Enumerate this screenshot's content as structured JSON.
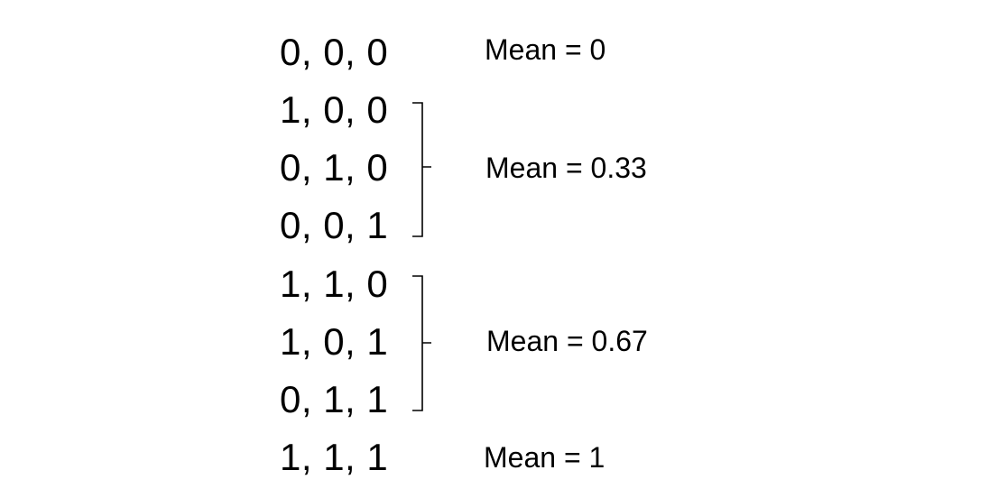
{
  "combinations": [
    "0, 0, 0",
    "1, 0, 0",
    "0, 1, 0",
    "0, 0, 1",
    "1, 1, 0",
    "1, 0, 1",
    "0, 1, 1",
    "1, 1, 1"
  ],
  "means": [
    "Mean = 0",
    "Mean = 0.33",
    "Mean = 0.67",
    "Mean = 1"
  ],
  "colors": {
    "text": "#000000",
    "background": "#ffffff"
  }
}
